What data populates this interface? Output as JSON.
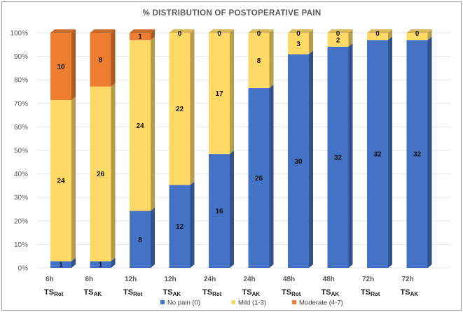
{
  "chart_data": {
    "type": "bar",
    "stacked": true,
    "percent": true,
    "title": "% DISTRIBUTION OF POSTOPERATIVE PAIN",
    "ylim": [
      0,
      100
    ],
    "yticks": [
      "0%",
      "10%",
      "20%",
      "30%",
      "40%",
      "50%",
      "60%",
      "70%",
      "80%",
      "90%",
      "100%"
    ],
    "categories": [
      "6h",
      "6h",
      "12h",
      "12h",
      "24h",
      "24h",
      "48h",
      "48h",
      "72h",
      "72h"
    ],
    "groups": [
      {
        "base": "TS",
        "sub": "Rot"
      },
      {
        "base": "TS",
        "sub": "AK"
      },
      {
        "base": "TS",
        "sub": "Rot"
      },
      {
        "base": "TS",
        "sub": "AK"
      },
      {
        "base": "TS",
        "sub": "Rot"
      },
      {
        "base": "TS",
        "sub": "AK"
      },
      {
        "base": "TS",
        "sub": "Rot"
      },
      {
        "base": "TS",
        "sub": "AK"
      },
      {
        "base": "TS",
        "sub": "Rot"
      },
      {
        "base": "TS",
        "sub": "AK"
      }
    ],
    "series": [
      {
        "name": "No pain (0)",
        "color": "#4472c4",
        "values": [
          1,
          1,
          8,
          12,
          16,
          26,
          30,
          32,
          32,
          32
        ]
      },
      {
        "name": "Mild (1-3)",
        "color": "#ffd966",
        "values": [
          24,
          26,
          24,
          22,
          17,
          8,
          3,
          2,
          1,
          1
        ]
      },
      {
        "name": "Moderate (4-7)",
        "color": "#ed7d31",
        "values": [
          10,
          8,
          1,
          0,
          0,
          0,
          0,
          0,
          0,
          0
        ]
      }
    ],
    "data_labels": [
      [
        "1",
        "24",
        "10"
      ],
      [
        "1",
        "26",
        "8"
      ],
      [
        "8",
        "24",
        "1"
      ],
      [
        "12",
        "22",
        "0"
      ],
      [
        "16",
        "17",
        "0"
      ],
      [
        "26",
        "8",
        "0"
      ],
      [
        "30",
        "3",
        "0"
      ],
      [
        "32",
        "2",
        "0"
      ],
      [
        "32",
        "",
        "0"
      ],
      [
        "32",
        "",
        "0"
      ]
    ],
    "legend_position": "bottom"
  }
}
